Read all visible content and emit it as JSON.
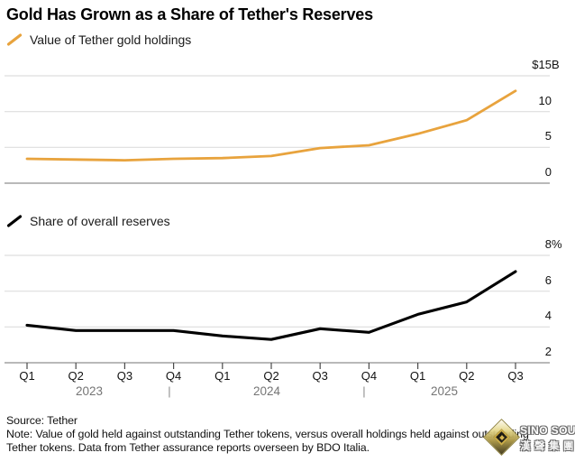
{
  "title": "Gold Has Grown as a Share of Tether's Reserves",
  "accent_color": "#E8A33D",
  "charts": [
    {
      "legend": "Value of Tether gold holdings"
    },
    {
      "legend": "Share of overall reserves"
    }
  ],
  "chart_data": [
    {
      "type": "line",
      "title": "Value of Tether gold holdings",
      "x": [
        "Q1 2023",
        "Q2 2023",
        "Q3 2023",
        "Q4 2023",
        "Q1 2024",
        "Q2 2024",
        "Q3 2024",
        "Q4 2024",
        "Q1 2025",
        "Q2 2025",
        "Q3 2025"
      ],
      "values": [
        3.4,
        3.3,
        3.2,
        3.4,
        3.5,
        3.8,
        4.9,
        5.3,
        6.9,
        8.8,
        12.9
      ],
      "unit": "$B",
      "ylim": [
        0,
        15
      ],
      "yticks": [
        15,
        10,
        5,
        0
      ],
      "ytick_labels": [
        {
          "num": "$15",
          "suffix": "B"
        },
        {
          "num": "10",
          "suffix": ""
        },
        {
          "num": "5",
          "suffix": ""
        },
        {
          "num": "0",
          "suffix": ""
        }
      ],
      "color": "#E8A33D",
      "grid": true,
      "legend_position": "top-left"
    },
    {
      "type": "line",
      "title": "Share of overall reserves",
      "x": [
        "Q1 2023",
        "Q2 2023",
        "Q3 2023",
        "Q4 2023",
        "Q1 2024",
        "Q2 2024",
        "Q3 2024",
        "Q4 2024",
        "Q1 2025",
        "Q2 2025",
        "Q3 2025"
      ],
      "values": [
        4.1,
        3.8,
        3.8,
        3.8,
        3.5,
        3.3,
        3.9,
        3.7,
        4.7,
        5.4,
        7.1
      ],
      "unit": "%",
      "ylim": [
        2,
        8
      ],
      "yticks": [
        8,
        6,
        4,
        2
      ],
      "ytick_labels": [
        {
          "num": "8",
          "suffix": "%"
        },
        {
          "num": "6",
          "suffix": ""
        },
        {
          "num": "4",
          "suffix": ""
        },
        {
          "num": "2",
          "suffix": ""
        }
      ],
      "color": "#000000",
      "grid": true,
      "legend_position": "top-left"
    }
  ],
  "x_axis": {
    "quarters": [
      "Q1",
      "Q2",
      "Q3",
      "Q4",
      "Q1",
      "Q2",
      "Q3",
      "Q4",
      "Q1",
      "Q2",
      "Q3"
    ],
    "years": [
      "2023",
      "2024",
      "2025"
    ],
    "separator": "|"
  },
  "footer": {
    "source": "Source: Tether",
    "note_line1": "Note: Value of gold held against outstanding Tether tokens, versus overall holdings held against outstanding",
    "note_line2": "Tether tokens. Data from Tether assurance reports overseen by BDO Italia."
  },
  "watermark": {
    "name": "SINO SOUND",
    "cn": "漢聲集團"
  }
}
